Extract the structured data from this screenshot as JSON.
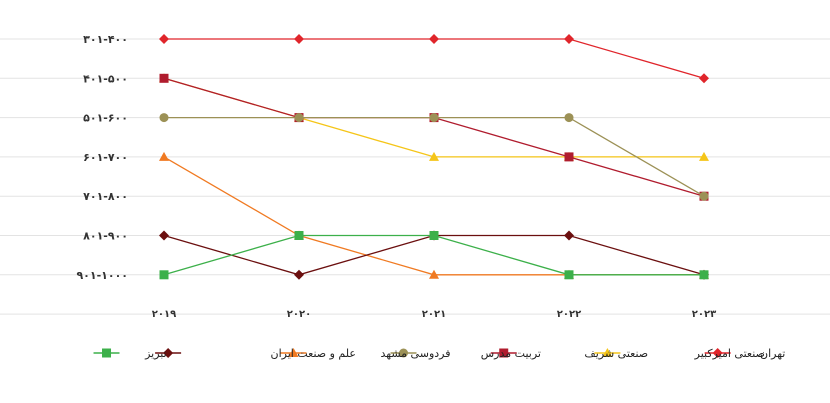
{
  "chart_data": {
    "type": "line",
    "title": "",
    "xlabel": "",
    "ylabel": "",
    "x": [
      "2019",
      "2020",
      "2021",
      "2022",
      "2023"
    ],
    "x_tick_labels": [
      "۲۰۱۹",
      "۲۰۲۰",
      "۲۰۲۱",
      "۲۰۲۲",
      "۲۰۲۳"
    ],
    "y_categories": [
      "۳۰۱-۴۰۰",
      "۴۰۱-۵۰۰",
      "۵۰۱-۶۰۰",
      "۶۰۱-۷۰۰",
      "۷۰۱-۸۰۰",
      "۸۰۱-۹۰۰",
      "۹۰۱-۱۰۰۰"
    ],
    "y_values_meaning": "index into y_categories (0 = 301-400 at top, 6 = 901-1000 at bottom)",
    "grid": true,
    "legend_position": "bottom",
    "series": [
      {
        "name": "تهران",
        "color": "#e0252b",
        "marker": "diamond",
        "values": [
          0,
          0,
          0,
          0,
          1
        ]
      },
      {
        "name": "صنعتی امیرکبیر",
        "color": "#f5c518",
        "marker": "triangle",
        "values": [
          1,
          2,
          3,
          3,
          3
        ]
      },
      {
        "name": "صنعتی شریف",
        "color": "#b01c2e",
        "marker": "square",
        "values": [
          1,
          2,
          2,
          3,
          4
        ]
      },
      {
        "name": "تربیت مدرس",
        "color": "#9c9156",
        "marker": "circle",
        "values": [
          2,
          2,
          2,
          2,
          4
        ]
      },
      {
        "name": "فردوسی مشهد",
        "color": "#f07a22",
        "marker": "triangle",
        "values": [
          3,
          5,
          6,
          6,
          6
        ]
      },
      {
        "name": "علم و صنعت ایران",
        "color": "#6b0f0f",
        "marker": "diamond",
        "values": [
          5,
          6,
          5,
          5,
          6
        ]
      },
      {
        "name": "تبریز",
        "color": "#3cb04a",
        "marker": "square",
        "values": [
          6,
          5,
          5,
          6,
          6
        ]
      }
    ]
  }
}
